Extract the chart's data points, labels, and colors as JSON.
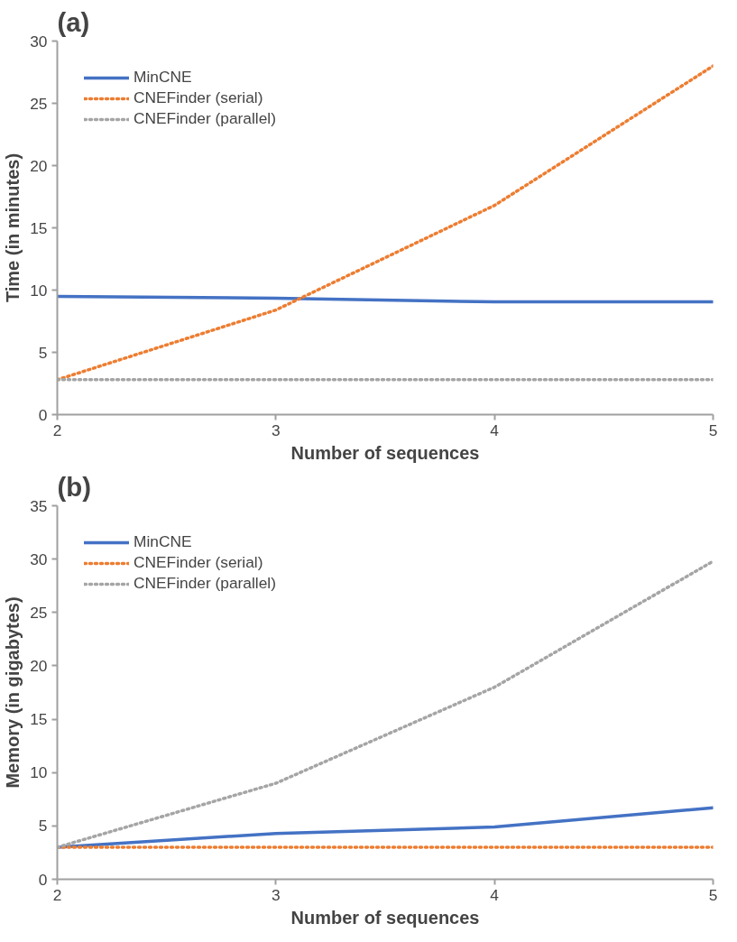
{
  "chart_data": [
    {
      "type": "line",
      "title": "(a)",
      "xlabel": "Number of sequences",
      "ylabel": "Time (in minutes)",
      "x": [
        2,
        3,
        4,
        5
      ],
      "xlim": [
        2,
        5
      ],
      "xticks": [
        2,
        3,
        4,
        5
      ],
      "ylim": [
        0,
        30
      ],
      "yticks": [
        0,
        5,
        10,
        15,
        20,
        25,
        30
      ],
      "grid": false,
      "legend": "top left",
      "series": [
        {
          "name": "MinCNE",
          "color": "#4472c4",
          "line_style": "solid",
          "values": [
            9.5,
            9.35,
            9.05,
            9.05
          ]
        },
        {
          "name": "CNEFinder (serial)",
          "color": "#ed7d31",
          "line_style": "dotted",
          "values": [
            2.8,
            8.4,
            16.8,
            28
          ]
        },
        {
          "name": "CNEFinder (parallel)",
          "color": "#a5a5a5",
          "line_style": "dotted",
          "values": [
            2.8,
            2.8,
            2.8,
            2.8
          ]
        }
      ]
    },
    {
      "type": "line",
      "title": "(b)",
      "xlabel": "Number of sequences",
      "ylabel": "Memory (in gigabytes)",
      "x": [
        2,
        3,
        4,
        5
      ],
      "xlim": [
        2,
        5
      ],
      "xticks": [
        2,
        3,
        4,
        5
      ],
      "ylim": [
        0,
        35
      ],
      "yticks": [
        0,
        5,
        10,
        15,
        20,
        25,
        30,
        35
      ],
      "grid": false,
      "legend": "top left",
      "series": [
        {
          "name": "MinCNE",
          "color": "#4472c4",
          "line_style": "solid",
          "values": [
            3,
            4.3,
            4.9,
            6.7
          ]
        },
        {
          "name": "CNEFinder (serial)",
          "color": "#ed7d31",
          "line_style": "dotted",
          "values": [
            3,
            3,
            3,
            3
          ]
        },
        {
          "name": "CNEFinder (parallel)",
          "color": "#a5a5a5",
          "line_style": "dotted",
          "values": [
            3,
            9,
            18,
            29.8
          ]
        }
      ]
    }
  ]
}
